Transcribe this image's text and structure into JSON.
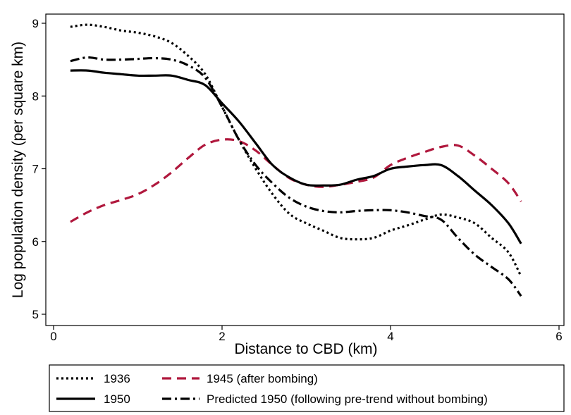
{
  "chart_data": {
    "type": "line",
    "title": "",
    "xlabel": "Distance to CBD (km)",
    "ylabel": "Log population density (per square km)",
    "xlim": [
      0,
      6
    ],
    "ylim": [
      5,
      9
    ],
    "x_ticks": [
      "0",
      "2",
      "4",
      "6"
    ],
    "y_ticks": [
      "5",
      "6",
      "7",
      "8",
      "9"
    ],
    "grid": false,
    "legend_position": "bottom",
    "series": [
      {
        "name": "1936",
        "style": "dotted",
        "color": "#000000",
        "points": [
          [
            0.2,
            8.95
          ],
          [
            0.4,
            8.98
          ],
          [
            0.6,
            8.95
          ],
          [
            0.8,
            8.9
          ],
          [
            1.0,
            8.87
          ],
          [
            1.2,
            8.82
          ],
          [
            1.4,
            8.73
          ],
          [
            1.6,
            8.55
          ],
          [
            1.8,
            8.3
          ],
          [
            2.0,
            7.85
          ],
          [
            2.2,
            7.4
          ],
          [
            2.4,
            7.0
          ],
          [
            2.6,
            6.65
          ],
          [
            2.8,
            6.38
          ],
          [
            3.0,
            6.25
          ],
          [
            3.2,
            6.15
          ],
          [
            3.4,
            6.05
          ],
          [
            3.6,
            6.03
          ],
          [
            3.8,
            6.05
          ],
          [
            4.0,
            6.15
          ],
          [
            4.2,
            6.22
          ],
          [
            4.4,
            6.3
          ],
          [
            4.6,
            6.37
          ],
          [
            4.8,
            6.33
          ],
          [
            5.0,
            6.25
          ],
          [
            5.2,
            6.05
          ],
          [
            5.4,
            5.85
          ],
          [
            5.55,
            5.52
          ]
        ]
      },
      {
        "name": "1945 (after bombing)",
        "style": "dashed",
        "color": "#b0183d",
        "points": [
          [
            0.2,
            6.27
          ],
          [
            0.4,
            6.4
          ],
          [
            0.6,
            6.5
          ],
          [
            0.8,
            6.57
          ],
          [
            1.0,
            6.65
          ],
          [
            1.2,
            6.78
          ],
          [
            1.4,
            6.95
          ],
          [
            1.6,
            7.15
          ],
          [
            1.8,
            7.33
          ],
          [
            2.0,
            7.4
          ],
          [
            2.2,
            7.38
          ],
          [
            2.4,
            7.25
          ],
          [
            2.6,
            7.05
          ],
          [
            2.8,
            6.87
          ],
          [
            3.0,
            6.78
          ],
          [
            3.2,
            6.75
          ],
          [
            3.4,
            6.78
          ],
          [
            3.6,
            6.82
          ],
          [
            3.8,
            6.88
          ],
          [
            4.0,
            7.05
          ],
          [
            4.2,
            7.15
          ],
          [
            4.4,
            7.23
          ],
          [
            4.6,
            7.3
          ],
          [
            4.8,
            7.32
          ],
          [
            5.0,
            7.18
          ],
          [
            5.2,
            7.0
          ],
          [
            5.4,
            6.8
          ],
          [
            5.55,
            6.55
          ]
        ]
      },
      {
        "name": "1950",
        "style": "solid",
        "color": "#000000",
        "points": [
          [
            0.2,
            8.35
          ],
          [
            0.4,
            8.35
          ],
          [
            0.6,
            8.32
          ],
          [
            0.8,
            8.3
          ],
          [
            1.0,
            8.28
          ],
          [
            1.2,
            8.28
          ],
          [
            1.4,
            8.28
          ],
          [
            1.6,
            8.22
          ],
          [
            1.8,
            8.15
          ],
          [
            2.0,
            7.9
          ],
          [
            2.2,
            7.65
          ],
          [
            2.4,
            7.35
          ],
          [
            2.6,
            7.05
          ],
          [
            2.8,
            6.88
          ],
          [
            3.0,
            6.78
          ],
          [
            3.2,
            6.77
          ],
          [
            3.4,
            6.78
          ],
          [
            3.6,
            6.85
          ],
          [
            3.8,
            6.9
          ],
          [
            4.0,
            7.0
          ],
          [
            4.2,
            7.03
          ],
          [
            4.4,
            7.05
          ],
          [
            4.6,
            7.05
          ],
          [
            4.8,
            6.9
          ],
          [
            5.0,
            6.7
          ],
          [
            5.2,
            6.5
          ],
          [
            5.4,
            6.25
          ],
          [
            5.55,
            5.97
          ]
        ]
      },
      {
        "name": "Predicted 1950 (following pre-trend without bombing)",
        "style": "dashdot",
        "color": "#000000",
        "points": [
          [
            0.2,
            8.48
          ],
          [
            0.4,
            8.53
          ],
          [
            0.6,
            8.5
          ],
          [
            0.8,
            8.5
          ],
          [
            1.0,
            8.51
          ],
          [
            1.2,
            8.52
          ],
          [
            1.4,
            8.5
          ],
          [
            1.6,
            8.42
          ],
          [
            1.8,
            8.25
          ],
          [
            2.0,
            7.85
          ],
          [
            2.2,
            7.4
          ],
          [
            2.4,
            7.05
          ],
          [
            2.6,
            6.8
          ],
          [
            2.8,
            6.6
          ],
          [
            3.0,
            6.48
          ],
          [
            3.2,
            6.42
          ],
          [
            3.4,
            6.4
          ],
          [
            3.6,
            6.42
          ],
          [
            3.8,
            6.43
          ],
          [
            4.0,
            6.43
          ],
          [
            4.2,
            6.4
          ],
          [
            4.4,
            6.35
          ],
          [
            4.6,
            6.3
          ],
          [
            4.8,
            6.05
          ],
          [
            5.0,
            5.82
          ],
          [
            5.2,
            5.65
          ],
          [
            5.4,
            5.48
          ],
          [
            5.55,
            5.25
          ]
        ]
      }
    ]
  }
}
